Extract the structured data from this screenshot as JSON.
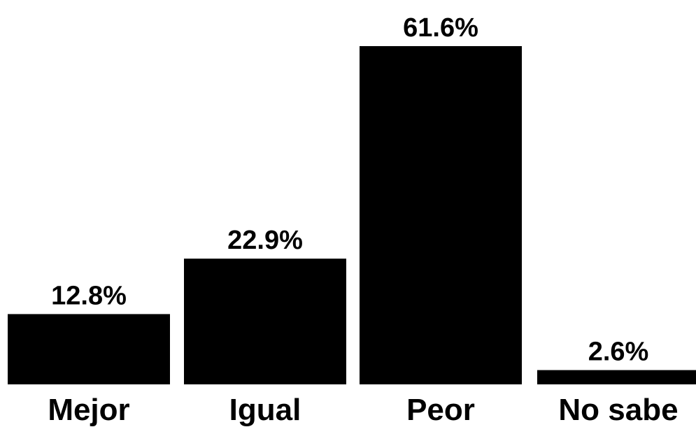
{
  "chart_data": {
    "type": "bar",
    "categories": [
      "Mejor",
      "Igual",
      "Peor",
      "No sabe"
    ],
    "values": [
      12.8,
      22.9,
      61.6,
      2.6
    ],
    "value_labels": [
      "12.8%",
      "22.9%",
      "61.6%",
      "2.6%"
    ],
    "title": "",
    "xlabel": "",
    "ylabel": "",
    "ylim": [
      0,
      61.6
    ],
    "grid": false,
    "axes_visible": false,
    "bar_color": "#000000"
  }
}
